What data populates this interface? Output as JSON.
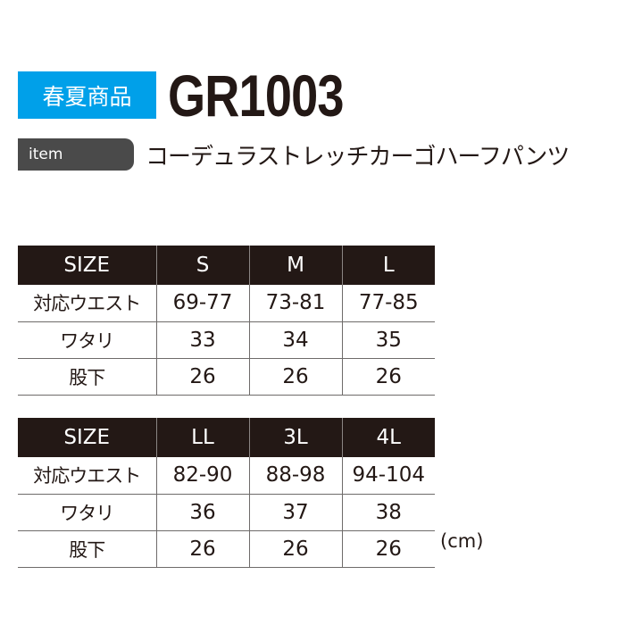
{
  "header": {
    "season_badge": "春夏商品",
    "product_code": "GR1003",
    "item_label": "item",
    "product_name": "コーデュラストレッチカーゴハーフパンツ"
  },
  "colors": {
    "badge": "#00a0e9",
    "header_row": "#231815",
    "item_bar": "#4a4a4a"
  },
  "tables": [
    {
      "headers": [
        "SIZE",
        "S",
        "M",
        "L"
      ],
      "rows": [
        [
          "対応ウエスト",
          "69-77",
          "73-81",
          "77-85"
        ],
        [
          "ワタリ",
          "33",
          "34",
          "35"
        ],
        [
          "股下",
          "26",
          "26",
          "26"
        ]
      ]
    },
    {
      "headers": [
        "SIZE",
        "LL",
        "3L",
        "4L"
      ],
      "rows": [
        [
          "対応ウエスト",
          "82-90",
          "88-98",
          "94-104"
        ],
        [
          "ワタリ",
          "36",
          "37",
          "38"
        ],
        [
          "股下",
          "26",
          "26",
          "26"
        ]
      ]
    }
  ],
  "unit": "(cm)"
}
